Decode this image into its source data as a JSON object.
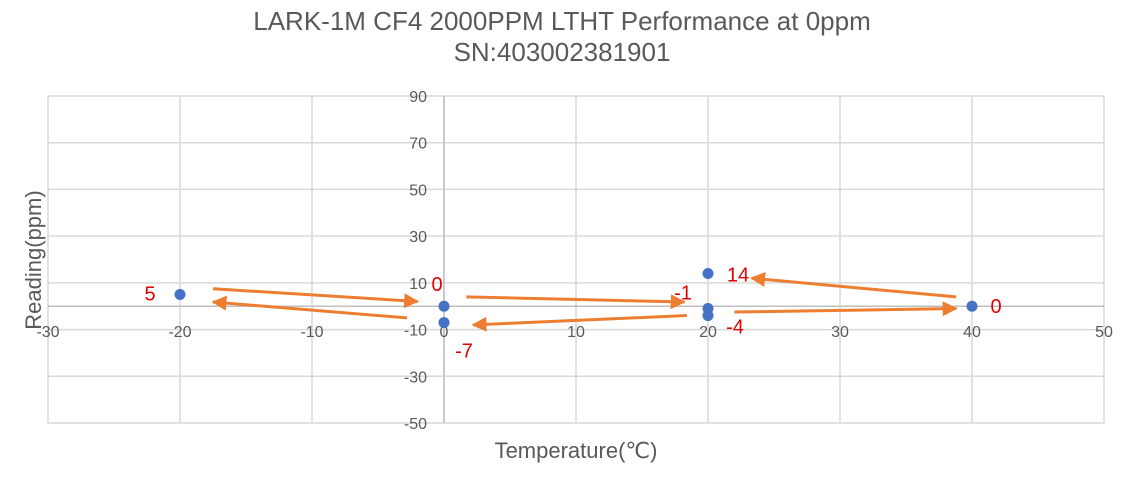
{
  "chart_data": {
    "type": "scatter",
    "title": "LARK-1M CF4 2000PPM LTHT Performance at 0ppm",
    "subtitle": "SN:403002381901",
    "xlabel": "Temperature(℃)",
    "ylabel": "Reading(ppm)",
    "xlim": [
      -30,
      50
    ],
    "ylim": [
      -50,
      90
    ],
    "x_ticks": [
      "-30",
      "-20",
      "-10",
      "0",
      "10",
      "20",
      "30",
      "40",
      "50"
    ],
    "y_ticks": [
      "90",
      "70",
      "50",
      "30",
      "10",
      "-10",
      "-30",
      "-50"
    ],
    "grid": true,
    "points": [
      {
        "x": -20,
        "y": 5,
        "label": "5"
      },
      {
        "x": 0,
        "y": 0,
        "label": "0"
      },
      {
        "x": 0,
        "y": -7,
        "label": "-7"
      },
      {
        "x": 20,
        "y": 14,
        "label": "14"
      },
      {
        "x": 20,
        "y": -1,
        "label": "-1"
      },
      {
        "x": 20,
        "y": -4,
        "label": "-4"
      },
      {
        "x": 40,
        "y": 0,
        "label": "0"
      }
    ],
    "colors": {
      "marker": "#4472C4",
      "label": "#E00000",
      "arrow": "#ED7D31",
      "grid": "#D9D9D9",
      "axis": "#BFBFBF",
      "text": "#595959"
    }
  }
}
